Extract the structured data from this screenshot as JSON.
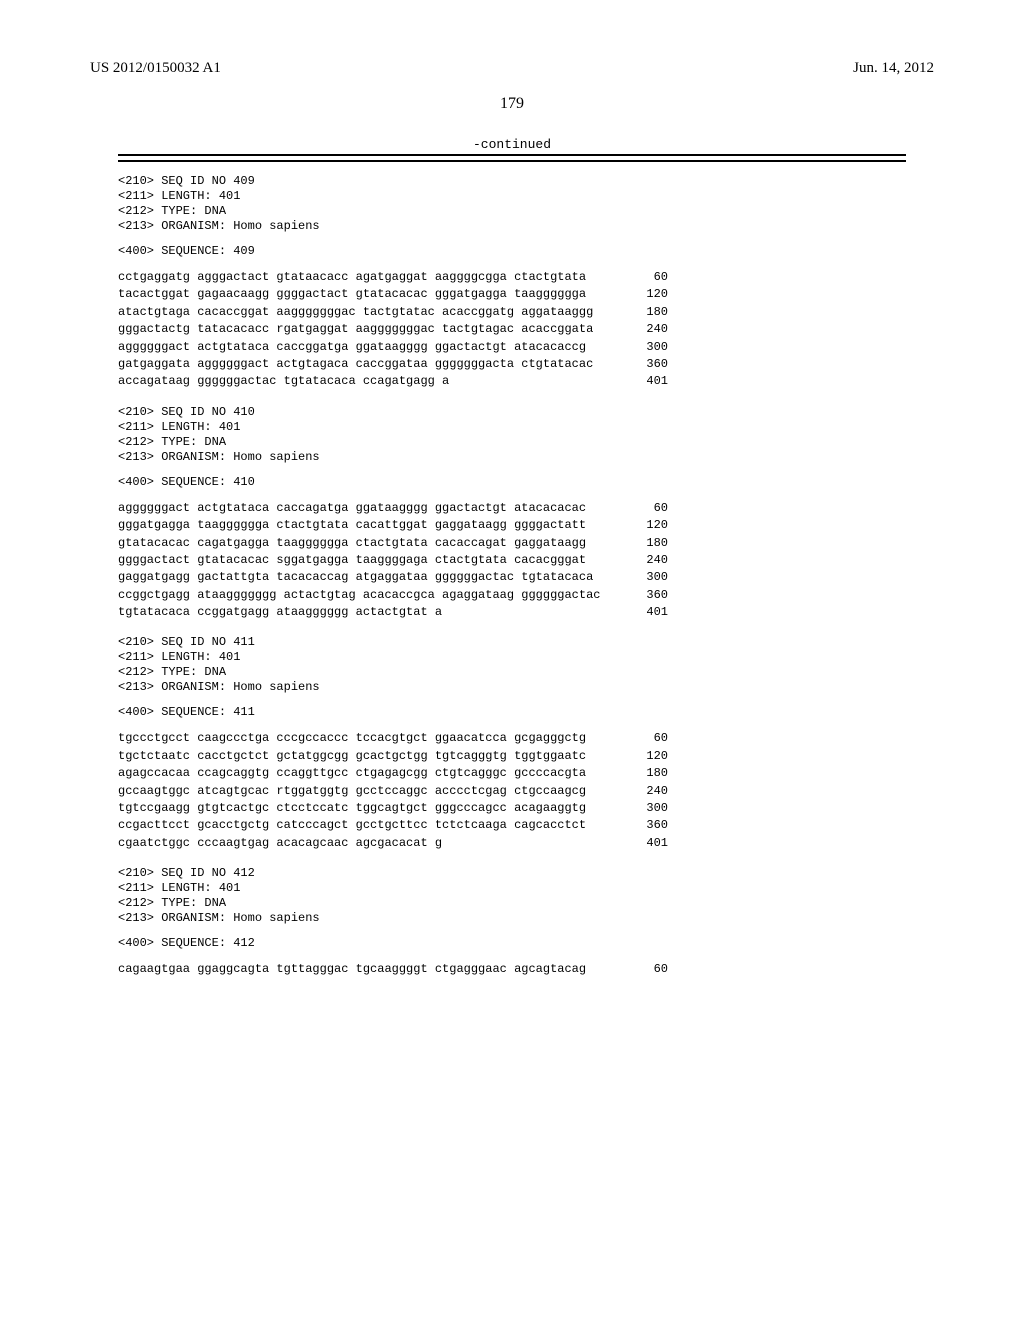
{
  "header": {
    "pub_number": "US 2012/0150032 A1",
    "pub_date": "Jun. 14, 2012"
  },
  "page_number": "179",
  "continued_label": "-continued",
  "sequences": [
    {
      "meta": [
        "<210> SEQ ID NO 409",
        "<211> LENGTH: 401",
        "<212> TYPE: DNA",
        "<213> ORGANISM: Homo sapiens"
      ],
      "sequence_label": "<400> SEQUENCE: 409",
      "lines": [
        {
          "seq": "cctgaggatg agggactact gtataacacc agatgaggat aaggggcgga ctactgtata",
          "pos": "60"
        },
        {
          "seq": "tacactggat gagaacaagg ggggactact gtatacacac gggatgagga taagggggga",
          "pos": "120"
        },
        {
          "seq": "atactgtaga cacaccggat aagggggggac tactgtatac acaccggatg aggataaggg",
          "pos": "180"
        },
        {
          "seq": "gggactactg tatacacacc rgatgaggat aagggggggac tactgtagac acaccggata",
          "pos": "240"
        },
        {
          "seq": "aggggggact actgtataca caccggatga ggataagggg ggactactgt atacacaccg",
          "pos": "300"
        },
        {
          "seq": "gatgaggata aggggggact actgtagaca caccggataa gggggggacta ctgtatacac",
          "pos": "360"
        },
        {
          "seq": "accagataag ggggggactac tgtatacaca ccagatgagg a",
          "pos": "401"
        }
      ]
    },
    {
      "meta": [
        "<210> SEQ ID NO 410",
        "<211> LENGTH: 401",
        "<212> TYPE: DNA",
        "<213> ORGANISM: Homo sapiens"
      ],
      "sequence_label": "<400> SEQUENCE: 410",
      "lines": [
        {
          "seq": "aggggggact actgtataca caccagatga ggataagggg ggactactgt atacacacac",
          "pos": "60"
        },
        {
          "seq": "gggatgagga taagggggga ctactgtata cacattggat gaggataagg ggggactatt",
          "pos": "120"
        },
        {
          "seq": "gtatacacac cagatgagga taagggggga ctactgtata cacaccagat gaggataagg",
          "pos": "180"
        },
        {
          "seq": "ggggactact gtatacacac sggatgagga taaggggaga ctactgtata cacacgggat",
          "pos": "240"
        },
        {
          "seq": "gaggatgagg gactattgta tacacaccag atgaggataa ggggggactac tgtatacaca",
          "pos": "300"
        },
        {
          "seq": "ccggctgagg ataaggggggg actactgtag acacaccgca agaggataag ggggggactac",
          "pos": "360"
        },
        {
          "seq": "tgtatacaca ccggatgagg ataagggggg actactgtat a",
          "pos": "401"
        }
      ]
    },
    {
      "meta": [
        "<210> SEQ ID NO 411",
        "<211> LENGTH: 401",
        "<212> TYPE: DNA",
        "<213> ORGANISM: Homo sapiens"
      ],
      "sequence_label": "<400> SEQUENCE: 411",
      "lines": [
        {
          "seq": "tgccctgcct caagccctga cccgccaccc tccacgtgct ggaacatcca gcgagggctg",
          "pos": "60"
        },
        {
          "seq": "tgctctaatc cacctgctct gctatggcgg gcactgctgg tgtcagggtg tggtggaatc",
          "pos": "120"
        },
        {
          "seq": "agagccacaa ccagcaggtg ccaggttgcc ctgagagcgg ctgtcagggc gccccacgta",
          "pos": "180"
        },
        {
          "seq": "gccaagtggc atcagtgcac rtggatggtg gcctccaggc acccctcgag ctgccaagcg",
          "pos": "240"
        },
        {
          "seq": "tgtccgaagg gtgtcactgc ctcctccatc tggcagtgct gggcccagcc acagaaggtg",
          "pos": "300"
        },
        {
          "seq": "ccgacttcct gcacctgctg catcccagct gcctgcttcc tctctcaaga cagcacctct",
          "pos": "360"
        },
        {
          "seq": "cgaatctggc cccaagtgag acacagcaac agcgacacat g",
          "pos": "401"
        }
      ]
    },
    {
      "meta": [
        "<210> SEQ ID NO 412",
        "<211> LENGTH: 401",
        "<212> TYPE: DNA",
        "<213> ORGANISM: Homo sapiens"
      ],
      "sequence_label": "<400> SEQUENCE: 412",
      "lines": [
        {
          "seq": "cagaagtgaa ggaggcagta tgttagggac tgcaaggggt ctgagggaac agcagtacag",
          "pos": "60"
        }
      ]
    }
  ]
}
